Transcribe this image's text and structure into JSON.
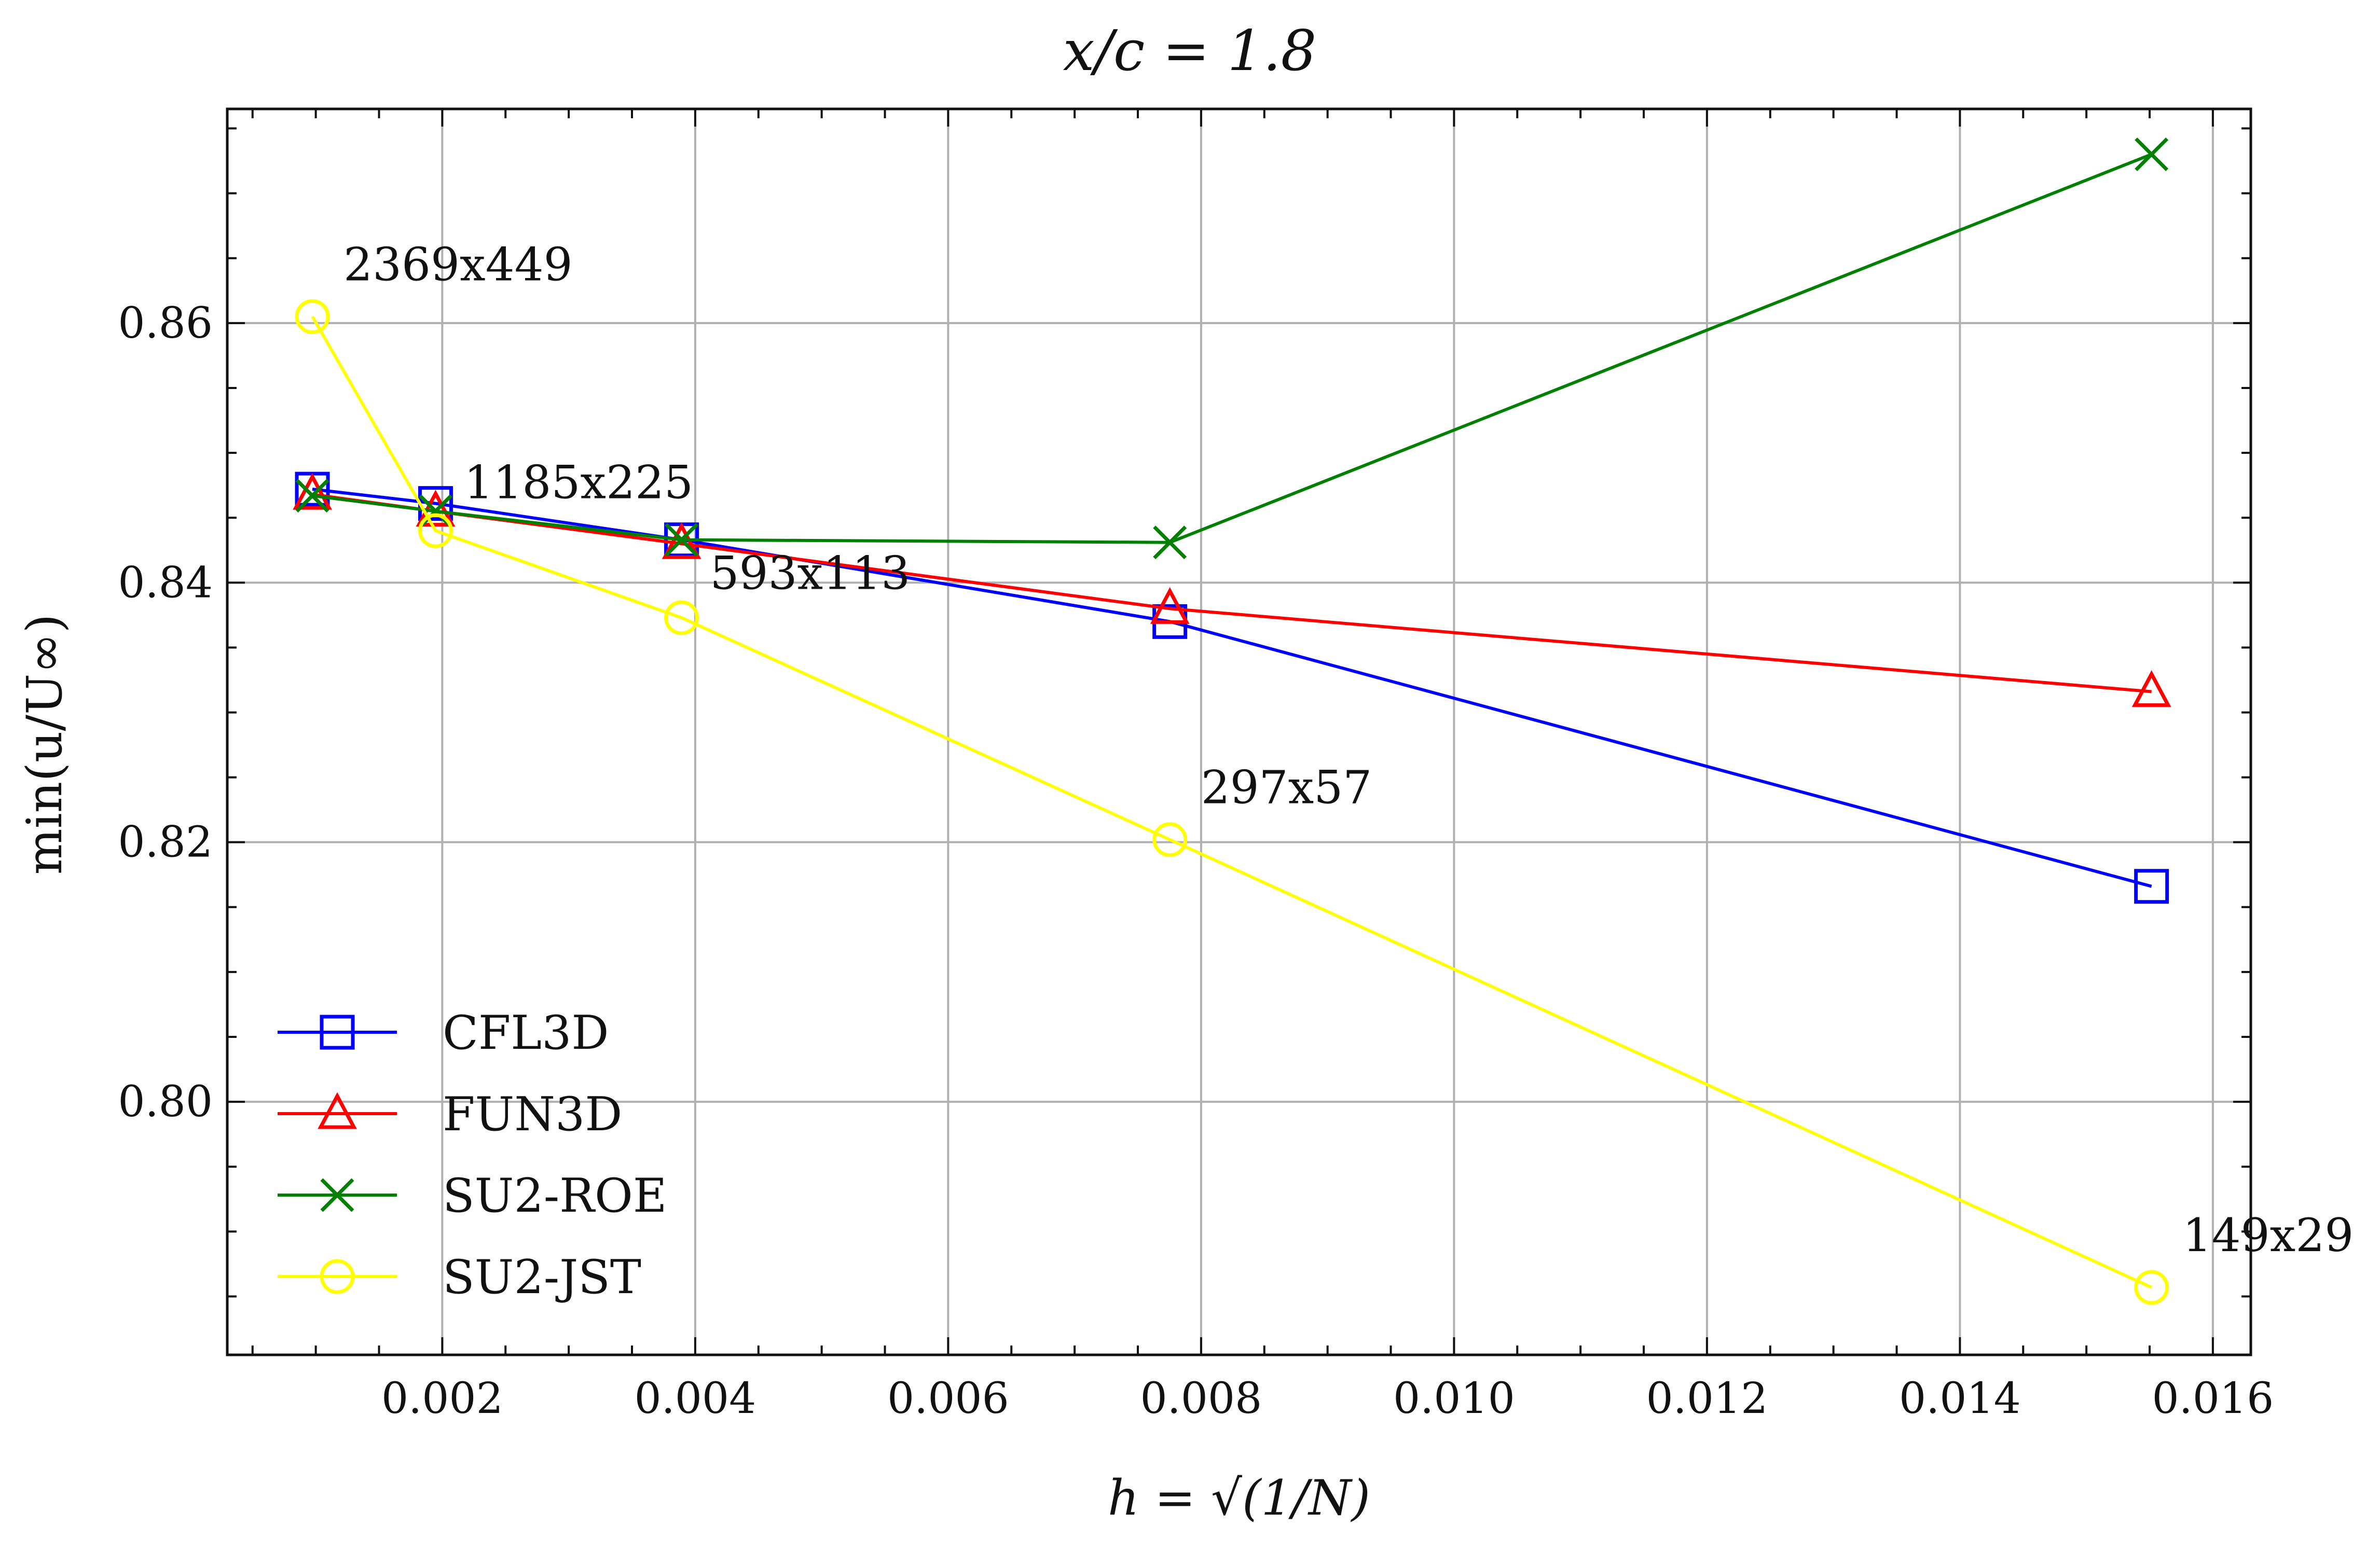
{
  "chart_data": {
    "type": "line",
    "title": "x/c = 1.8",
    "xlabel": "h = √(1/N)",
    "ylabel": "min(u/U∞)",
    "xlim": [
      0.0003,
      0.0163
    ],
    "ylim": [
      0.7805,
      0.8765
    ],
    "xticks": [
      0.002,
      0.004,
      0.006,
      0.008,
      0.01,
      0.012,
      0.014,
      0.016
    ],
    "xtick_labels": [
      "0.002",
      "0.004",
      "0.006",
      "0.008",
      "0.010",
      "0.012",
      "0.014",
      "0.016"
    ],
    "yticks": [
      0.8,
      0.82,
      0.84,
      0.86
    ],
    "ytick_labels": [
      "0.80",
      "0.82",
      "0.84",
      "0.86"
    ],
    "grid": true,
    "legend_position": "lower-left",
    "series": [
      {
        "name": "CFL3D",
        "marker": "square",
        "color": "#0000ff",
        "x": [
          0.000973,
          0.001947,
          0.003892,
          0.007753,
          0.015515
        ],
        "y": [
          0.8472,
          0.8461,
          0.8433,
          0.837,
          0.8166
        ]
      },
      {
        "name": "FUN3D",
        "marker": "triangle",
        "color": "#ff0000",
        "x": [
          0.000973,
          0.001947,
          0.003892,
          0.007753,
          0.015515
        ],
        "y": [
          0.8468,
          0.8455,
          0.843,
          0.838,
          0.8316
        ]
      },
      {
        "name": "SU2-ROE",
        "marker": "x",
        "color": "#008000",
        "x": [
          0.000973,
          0.001947,
          0.003892,
          0.007753,
          0.015515
        ],
        "y": [
          0.8467,
          0.8455,
          0.8433,
          0.8431,
          0.873
        ]
      },
      {
        "name": "SU2-JST",
        "marker": "circle",
        "color": "#ffff00",
        "x": [
          0.000973,
          0.001947,
          0.003892,
          0.007753,
          0.015515
        ],
        "y": [
          0.8605,
          0.844,
          0.8373,
          0.8202,
          0.7857
        ]
      }
    ],
    "annotations": [
      {
        "text": "2369x449",
        "x": 0.000973,
        "y": 0.8605,
        "anchor": "above-right"
      },
      {
        "text": "1185x225",
        "x": 0.001947,
        "y": 0.8461,
        "anchor": "right"
      },
      {
        "text": "593x113",
        "x": 0.003892,
        "y": 0.8433,
        "anchor": "below-right"
      },
      {
        "text": "297x57",
        "x": 0.007753,
        "y": 0.8202,
        "anchor": "above-right"
      },
      {
        "text": "149x29",
        "x": 0.015515,
        "y": 0.7857,
        "anchor": "above-right"
      }
    ]
  }
}
